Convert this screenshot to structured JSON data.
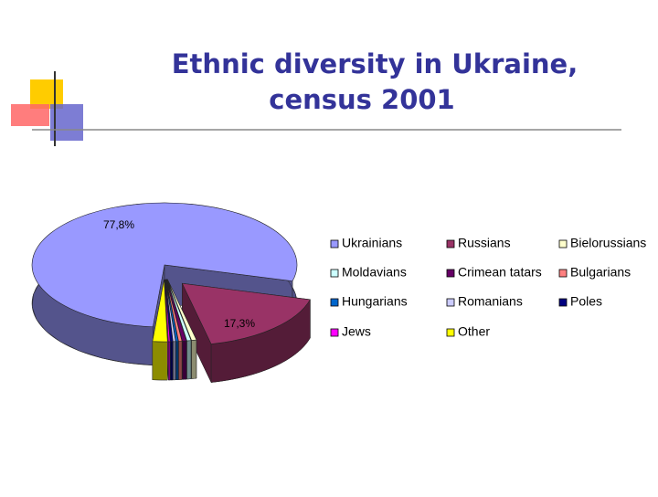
{
  "chart_data": {
    "type": "pie3d",
    "title": [
      "Ethnic diversity in Ukraine,",
      "census 2001"
    ],
    "categories": [
      "Ukrainians",
      "Russians",
      "Bielorussians",
      "Moldavians",
      "Crimean tatars",
      "Bulgarians",
      "Hungarians",
      "Romanians",
      "Poles",
      "Jews",
      "Other"
    ],
    "values": [
      77.8,
      17.3,
      0.6,
      0.5,
      0.5,
      0.4,
      0.3,
      0.3,
      0.3,
      0.2,
      1.8
    ],
    "value_labels": [
      "77,8%",
      "17,3%",
      null,
      null,
      null,
      null,
      null,
      null,
      null,
      null,
      null
    ],
    "colors": [
      "#9999ff",
      "#993366",
      "#ffffcc",
      "#ccffff",
      "#660066",
      "#ff8080",
      "#0066cc",
      "#ccccff",
      "#000080",
      "#ff00ff",
      "#ffff00"
    ],
    "legend": "right"
  }
}
